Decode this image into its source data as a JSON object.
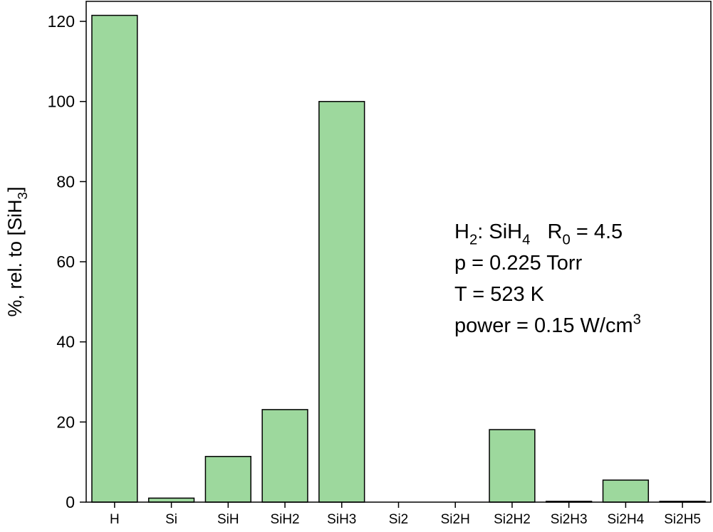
{
  "chart_data": {
    "type": "bar",
    "ylabel": [
      {
        "text": "%, rel. to [SiH"
      },
      {
        "text": "3",
        "baseline": "sub"
      },
      {
        "text": "]"
      }
    ],
    "categories": [
      "H",
      "Si",
      "SiH",
      "SiH2",
      "SiH3",
      "Si2",
      "Si2H",
      "Si2H2",
      "Si2H3",
      "Si2H4",
      "Si2H5"
    ],
    "values": [
      121.5,
      1,
      11.4,
      23.1,
      100,
      0,
      0,
      18.1,
      0.2,
      5.5,
      0.2
    ],
    "color": "#9dd89d",
    "ylim": [
      0,
      125
    ],
    "yticks": [
      0,
      20,
      40,
      60,
      80,
      100,
      120
    ],
    "annotation": [
      [
        {
          "text": "H"
        },
        {
          "text": "2",
          "baseline": "sub"
        },
        {
          "text": ": SiH"
        },
        {
          "text": "4",
          "baseline": "sub"
        },
        {
          "text": "   R"
        },
        {
          "text": "0",
          "baseline": "sub"
        },
        {
          "text": " = 4.5"
        }
      ],
      [
        {
          "text": "p = 0.225 Torr"
        }
      ],
      [
        {
          "text": "T = 523 K"
        }
      ],
      [
        {
          "text": "power = 0.15 W/cm"
        },
        {
          "text": "3",
          "baseline": "super"
        }
      ]
    ]
  }
}
